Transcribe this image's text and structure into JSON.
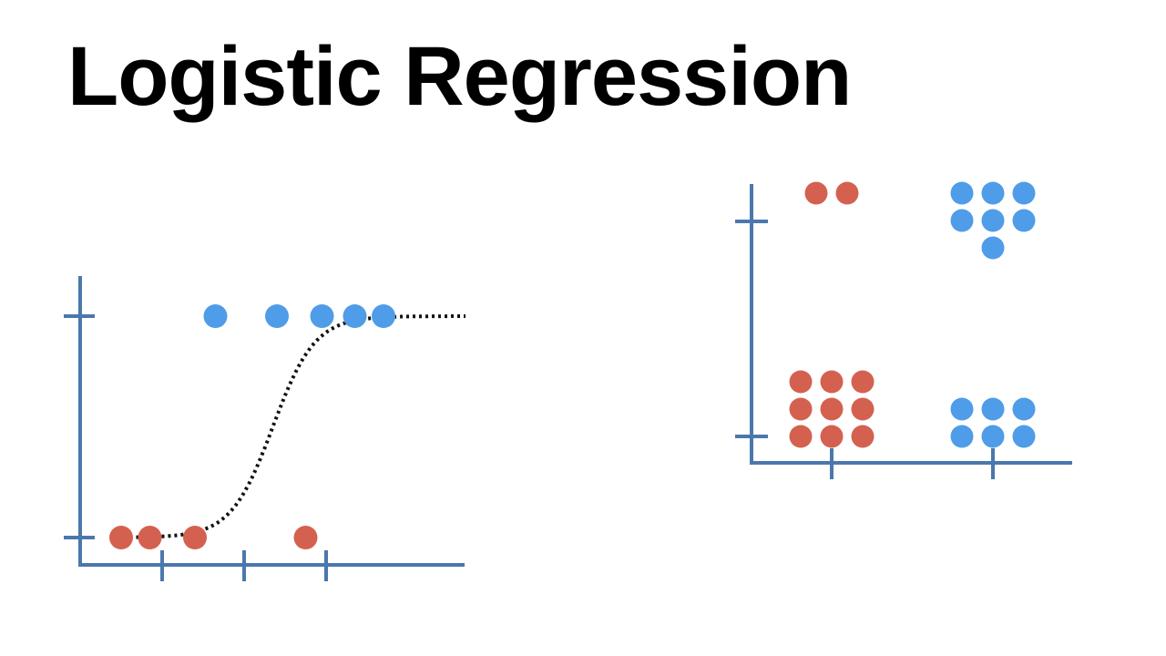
{
  "title": "Logistic Regression",
  "colors": {
    "axis": "#4a78ad",
    "positive": "#4f9ce8",
    "negative": "#d4614f",
    "curve": "#111111",
    "background": "#ffffff"
  },
  "chart_data": [
    {
      "type": "scatter",
      "title": "",
      "xlabel": "",
      "ylabel": "",
      "xlim": [
        0,
        4.5
      ],
      "ylim": [
        0,
        1
      ],
      "xticks": [
        1,
        2,
        3
      ],
      "yticks": [
        0,
        1
      ],
      "tick_labels_shown": false,
      "series": [
        {
          "class": "class-1",
          "color": "#4f9ce8",
          "x": [
            1.65,
            2.4,
            2.95,
            3.35,
            3.7
          ],
          "y": [
            1,
            1,
            1,
            1,
            1
          ]
        },
        {
          "class": "class-0",
          "color": "#d4614f",
          "x": [
            0.5,
            0.85,
            1.4,
            2.75
          ],
          "y": [
            0,
            0,
            0,
            0
          ]
        }
      ],
      "fitted_curve": {
        "kind": "sigmoid",
        "style": "dotted",
        "color": "#111111",
        "x_start": 0.45,
        "x_end": 4.7,
        "midpoint": 2.35,
        "steepness": 3.9
      }
    },
    {
      "type": "scatter",
      "title": "",
      "xlabel": "",
      "ylabel": "",
      "x_categories": [
        "A",
        "B"
      ],
      "category_labels_shown": false,
      "ylim": [
        0,
        1
      ],
      "yticks": [
        0,
        1
      ],
      "tick_labels_shown": false,
      "groups": [
        {
          "category": "A",
          "y": 1,
          "class": "class-0",
          "color": "#d4614f",
          "count": 2,
          "rows": [
            2
          ]
        },
        {
          "category": "B",
          "y": 1,
          "class": "class-1",
          "color": "#4f9ce8",
          "count": 7,
          "rows": [
            3,
            3,
            1
          ]
        },
        {
          "category": "A",
          "y": 0,
          "class": "class-0",
          "color": "#d4614f",
          "count": 9,
          "rows": [
            3,
            3,
            3
          ]
        },
        {
          "category": "B",
          "y": 0,
          "class": "class-1",
          "color": "#4f9ce8",
          "count": 6,
          "rows": [
            3,
            3
          ]
        }
      ]
    }
  ]
}
